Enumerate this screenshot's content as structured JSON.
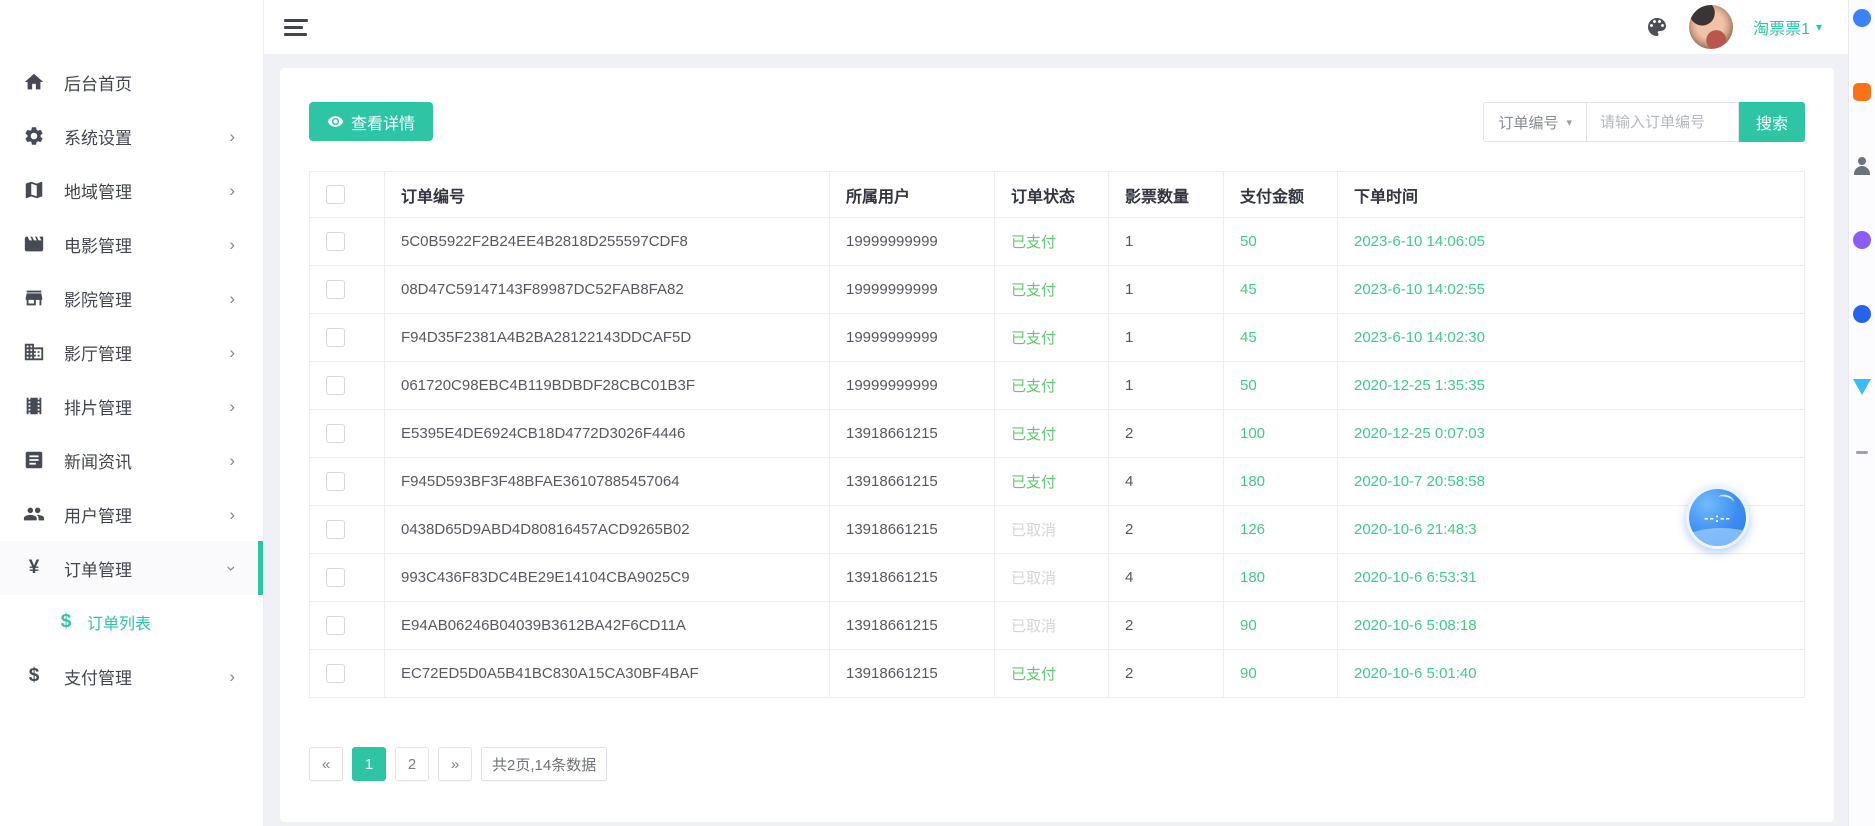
{
  "topbar": {
    "username": "淘票票1",
    "caret": "▾",
    "icons": {
      "menu": "hamburger-menu-icon",
      "theme": "palette-icon",
      "avatar": "user-avatar"
    }
  },
  "sidebar": {
    "items": [
      {
        "label": "后台首页",
        "icon": "home",
        "chevron": "none"
      },
      {
        "label": "系统设置",
        "icon": "gear",
        "chevron": "right"
      },
      {
        "label": "地域管理",
        "icon": "map",
        "chevron": "right"
      },
      {
        "label": "电影管理",
        "icon": "movie",
        "chevron": "right"
      },
      {
        "label": "影院管理",
        "icon": "store",
        "chevron": "right"
      },
      {
        "label": "影厅管理",
        "icon": "building",
        "chevron": "right"
      },
      {
        "label": "排片管理",
        "icon": "film",
        "chevron": "right"
      },
      {
        "label": "新闻资讯",
        "icon": "news",
        "chevron": "right"
      },
      {
        "label": "用户管理",
        "icon": "users",
        "chevron": "right"
      },
      {
        "label": "订单管理",
        "icon": "yen",
        "chevron": "down",
        "active": true
      },
      {
        "label": "订单列表",
        "icon": "dollar",
        "chevron": "none",
        "submenu": true
      },
      {
        "label": "支付管理",
        "icon": "dollar",
        "chevron": "right"
      }
    ]
  },
  "toolbar": {
    "detail_button": "查看详情",
    "filter_label": "订单编号",
    "filter_caret": "▾",
    "search_placeholder": "请输入订单编号",
    "search_button": "搜索"
  },
  "table": {
    "columns": [
      "订单编号",
      "所属用户",
      "订单状态",
      "影票数量",
      "支付金额",
      "下单时间"
    ],
    "rows": [
      {
        "id": "5C0B5922F2B24EE4B2818D255597CDF8",
        "user": "19999999999",
        "status": "已支付",
        "qty": "1",
        "amount": "50",
        "time": "2023-6-10 14:06:05"
      },
      {
        "id": "08D47C59147143F89987DC52FAB8FA82",
        "user": "19999999999",
        "status": "已支付",
        "qty": "1",
        "amount": "45",
        "time": "2023-6-10 14:02:55"
      },
      {
        "id": "F94D35F2381A4B2BA28122143DDCAF5D",
        "user": "19999999999",
        "status": "已支付",
        "qty": "1",
        "amount": "45",
        "time": "2023-6-10 14:02:30"
      },
      {
        "id": "061720C98EBC4B119BDBDF28CBC01B3F",
        "user": "19999999999",
        "status": "已支付",
        "qty": "1",
        "amount": "50",
        "time": "2020-12-25 1:35:35"
      },
      {
        "id": "E5395E4DE6924CB18D4772D3026F4446",
        "user": "13918661215",
        "status": "已支付",
        "qty": "2",
        "amount": "100",
        "time": "2020-12-25 0:07:03"
      },
      {
        "id": "F945D593BF3F48BFAE36107885457064",
        "user": "13918661215",
        "status": "已支付",
        "qty": "4",
        "amount": "180",
        "time": "2020-10-7 20:58:58"
      },
      {
        "id": "0438D65D9ABD4D80816457ACD9265B02",
        "user": "13918661215",
        "status": "已取消",
        "qty": "2",
        "amount": "126",
        "time": "2020-10-6 21:48:3"
      },
      {
        "id": "993C436F83DC4BE29E14104CBA9025C9",
        "user": "13918661215",
        "status": "已取消",
        "qty": "4",
        "amount": "180",
        "time": "2020-10-6 6:53:31"
      },
      {
        "id": "E94AB06246B04039B3612BA42F6CD11A",
        "user": "13918661215",
        "status": "已取消",
        "qty": "2",
        "amount": "90",
        "time": "2020-10-6 5:08:18"
      },
      {
        "id": "EC72ED5D0A5B41BC830A15CA30BF4BAF",
        "user": "13918661215",
        "status": "已支付",
        "qty": "2",
        "amount": "90",
        "time": "2020-10-6 5:01:40"
      }
    ],
    "status_paid": "已支付",
    "status_cancelled": "已取消"
  },
  "pagination": {
    "prev_label": "«",
    "pages": [
      "1",
      "2"
    ],
    "active_page": "1",
    "next_label": "»",
    "summary": "共2页,14条数据"
  },
  "floating_widget": {
    "text": "--:--"
  },
  "extension_strip": {
    "icons": [
      {
        "name": "blue-extension-icon",
        "shape": "round",
        "color": "#3b82f6"
      },
      {
        "name": "orange-extension-icon",
        "shape": "square",
        "color": "#f97316"
      },
      {
        "name": "person-extension-icon",
        "shape": "person",
        "color": "#6b7280"
      },
      {
        "name": "purple-extension-icon",
        "shape": "round",
        "color": "#8b5cf6"
      },
      {
        "name": "gear-extension-icon",
        "shape": "round",
        "color": "#2563eb"
      },
      {
        "name": "triangle-extension-icon",
        "shape": "triangle",
        "color": "#38bdf8"
      },
      {
        "name": "dash-extension-icon",
        "shape": "dash",
        "color": "#9ca3af"
      }
    ]
  },
  "colors": {
    "accent_teal": "#2ec5a5",
    "status_paid_green": "#5ecb72",
    "value_green": "#3ecd87",
    "cancelled_gray": "#d2d5da",
    "page_background": "#eff1f6"
  }
}
